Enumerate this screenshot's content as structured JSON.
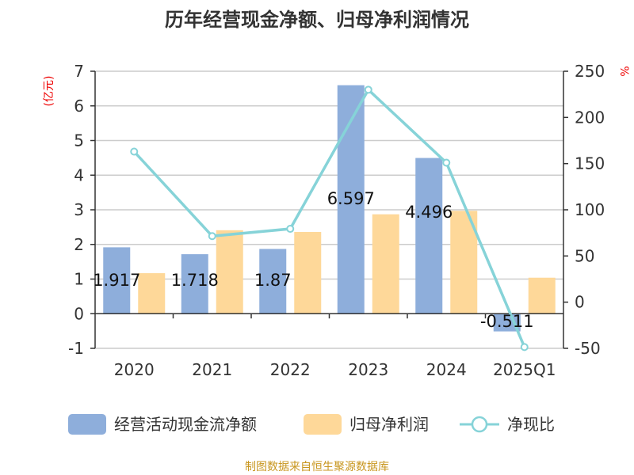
{
  "chart_data": {
    "type": "bar",
    "title": "历年经营现金净额、归母净利润情况",
    "categories": [
      "2020",
      "2021",
      "2022",
      "2023",
      "2024",
      "2025Q1"
    ],
    "ylabel_left": "(亿元)",
    "ylabel_right": "%",
    "ylim_left": [
      -1,
      7
    ],
    "yticks_left": [
      -1,
      0,
      1,
      2,
      3,
      4,
      5,
      6,
      7
    ],
    "ylim_right": [
      -50,
      250
    ],
    "yticks_right": [
      -50,
      0,
      50,
      100,
      150,
      200,
      250
    ],
    "grid": true,
    "legend_position": "bottom",
    "series": [
      {
        "name": "经营活动现金流净额",
        "type": "bar",
        "axis": "left",
        "color": "#8eaedb",
        "values": [
          1.917,
          1.718,
          1.87,
          6.597,
          4.496,
          -0.511
        ],
        "labels": [
          "1.917",
          "1.718",
          "1.87",
          "6.597",
          "4.496",
          "-0.511"
        ]
      },
      {
        "name": "归母净利润",
        "type": "bar",
        "axis": "left",
        "color": "#fed899",
        "values": [
          1.17,
          2.41,
          2.36,
          2.87,
          2.97,
          1.04
        ]
      },
      {
        "name": "净现比",
        "type": "line",
        "axis": "right",
        "color": "#86d3d8",
        "values": [
          163,
          71.5,
          79.4,
          230,
          151,
          -48.6
        ]
      }
    ]
  },
  "source": "制图数据来自恒生聚源数据库"
}
